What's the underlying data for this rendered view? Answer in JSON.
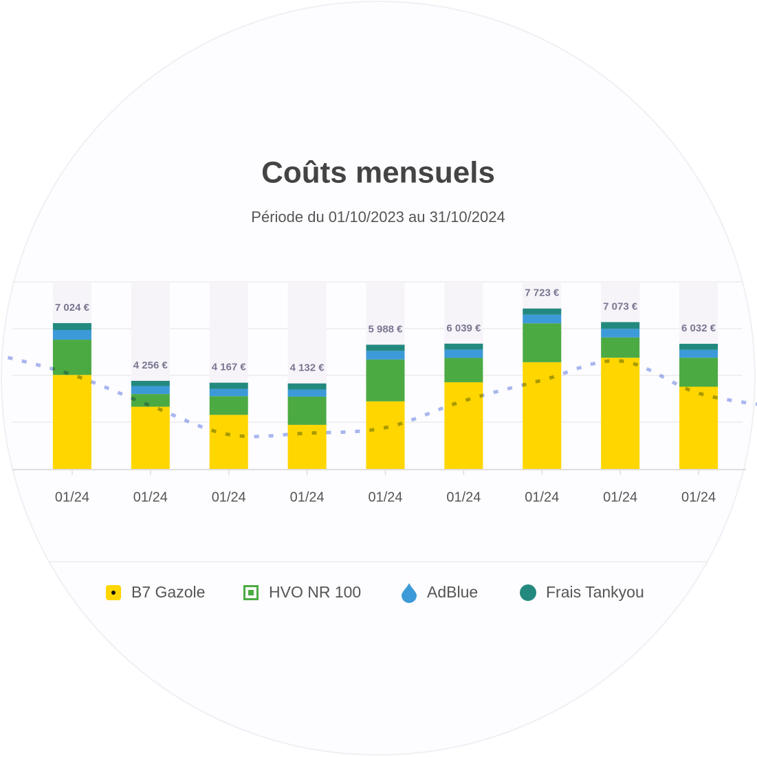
{
  "chart_data": {
    "type": "bar",
    "stacked": true,
    "title": "Coûts mensuels",
    "subtitle": "Période du 01/10/2023 au 31/10/2024",
    "categories": [
      "01/24",
      "01/24",
      "01/24",
      "01/24",
      "01/24",
      "01/24",
      "01/24",
      "01/24",
      "01/24"
    ],
    "series": [
      {
        "name": "B7 Gazole",
        "color": "#ffd600",
        "values": [
          4539,
          3015,
          2625,
          2146,
          3274,
          4188,
          5149,
          5364,
          3973
        ]
      },
      {
        "name": "HVO NR 100",
        "color": "#4caa43",
        "values": [
          1690,
          608,
          893,
          1351,
          2006,
          1168,
          1864,
          973,
          1392
        ]
      },
      {
        "name": "AdBlue",
        "color": "#3d9ad8",
        "values": [
          464,
          380,
          352,
          344,
          413,
          399,
          414,
          413,
          377
        ]
      },
      {
        "name": "Frais Tankyou",
        "color": "#23897f",
        "values": [
          331,
          253,
          297,
          291,
          295,
          284,
          296,
          323,
          290
        ]
      }
    ],
    "totals": [
      7024,
      4256,
      4167,
      4132,
      5988,
      6039,
      7723,
      7073,
      6032
    ],
    "total_labels": [
      "7 024 €",
      "4 256 €",
      "4 167 €",
      "4 132 €",
      "5 988 €",
      "6 039 €",
      "7 723 €",
      "7 073 €",
      "6 032 €"
    ],
    "trend": {
      "color": "#a9b8f0",
      "values": [
        4550,
        3066,
        1681,
        1747,
        2011,
        3297,
        4286,
        5209,
        3660
      ]
    },
    "ylim": [
      0,
      9000
    ]
  }
}
